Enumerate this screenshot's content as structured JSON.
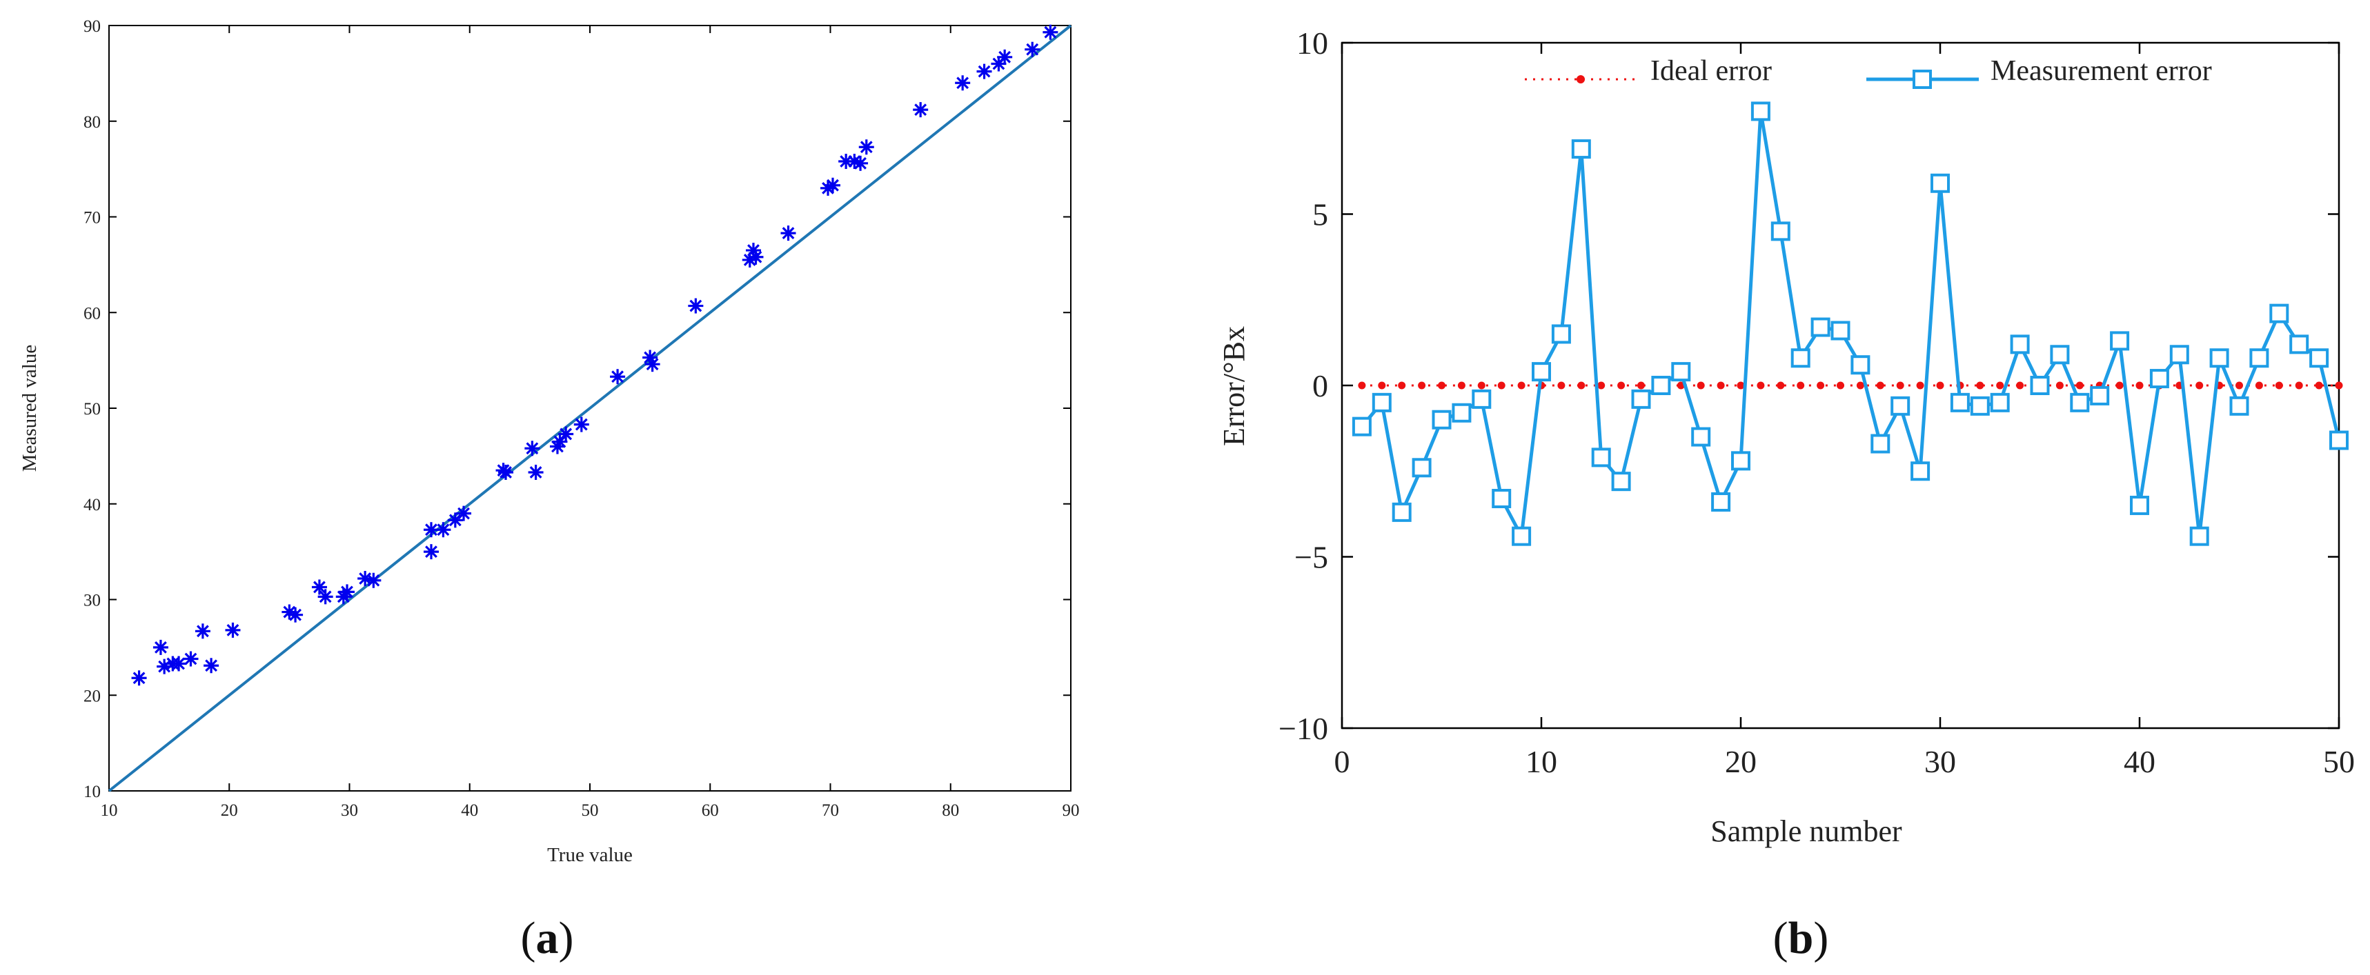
{
  "chart_data": [
    {
      "panel": "a",
      "type": "scatter",
      "xlabel": "True value",
      "ylabel": "Measured value",
      "xlim": [
        10,
        90
      ],
      "ylim": [
        10,
        90
      ],
      "xticks": [
        10,
        20,
        30,
        40,
        50,
        60,
        70,
        80,
        90
      ],
      "yticks": [
        10,
        20,
        30,
        40,
        50,
        60,
        70,
        80,
        90
      ],
      "grid": false,
      "colors": {
        "points": "#0000ee",
        "line": "#1f77b4"
      },
      "reference_line": {
        "x": [
          10,
          90
        ],
        "y": [
          10,
          90
        ]
      },
      "series": [
        {
          "marker": "asterisk",
          "points": [
            [
              12.5,
              21.8
            ],
            [
              14.3,
              25.0
            ],
            [
              14.6,
              23.0
            ],
            [
              15.3,
              23.3
            ],
            [
              15.8,
              23.3
            ],
            [
              16.8,
              23.8
            ],
            [
              17.8,
              26.7
            ],
            [
              18.5,
              23.1
            ],
            [
              20.3,
              26.8
            ],
            [
              25.0,
              28.7
            ],
            [
              25.5,
              28.4
            ],
            [
              27.5,
              31.3
            ],
            [
              28.0,
              30.3
            ],
            [
              29.5,
              30.3
            ],
            [
              29.8,
              30.8
            ],
            [
              31.3,
              32.2
            ],
            [
              32.0,
              32.0
            ],
            [
              36.8,
              37.3
            ],
            [
              36.8,
              35.0
            ],
            [
              37.8,
              37.3
            ],
            [
              38.8,
              38.3
            ],
            [
              39.5,
              39.0
            ],
            [
              42.8,
              43.5
            ],
            [
              43.0,
              43.3
            ],
            [
              45.2,
              45.8
            ],
            [
              45.5,
              43.3
            ],
            [
              47.3,
              46.0
            ],
            [
              47.5,
              46.5
            ],
            [
              48.0,
              47.3
            ],
            [
              49.3,
              48.3
            ],
            [
              52.3,
              53.3
            ],
            [
              55.0,
              55.3
            ],
            [
              55.2,
              54.6
            ],
            [
              58.8,
              60.7
            ],
            [
              63.3,
              65.5
            ],
            [
              63.6,
              66.5
            ],
            [
              63.8,
              65.8
            ],
            [
              66.5,
              68.3
            ],
            [
              69.8,
              73.0
            ],
            [
              70.2,
              73.3
            ],
            [
              71.3,
              75.8
            ],
            [
              72.0,
              75.8
            ],
            [
              72.5,
              75.6
            ],
            [
              73.0,
              77.3
            ],
            [
              77.5,
              81.2
            ],
            [
              81.0,
              84.0
            ],
            [
              82.8,
              85.2
            ],
            [
              84.0,
              86.0
            ],
            [
              84.5,
              86.7
            ],
            [
              86.8,
              87.5
            ],
            [
              88.3,
              89.3
            ]
          ]
        }
      ],
      "panel_label": {
        "open": "(",
        "letter": "a",
        "close": ")"
      }
    },
    {
      "panel": "b",
      "type": "line",
      "xlabel": "Sample number",
      "ylabel": "Error/°Bx",
      "xlim": [
        0,
        50
      ],
      "ylim": [
        -10,
        10
      ],
      "xticks": [
        0,
        10,
        20,
        30,
        40,
        50
      ],
      "yticks": [
        -10,
        -5,
        0,
        5,
        10
      ],
      "ytick_labels": [
        "−10",
        "−5",
        "0",
        "5",
        "10"
      ],
      "grid": false,
      "legend_position": "top",
      "series": [
        {
          "name": "Ideal error",
          "color": "#ee1111",
          "style": "dotted-with-dots",
          "x": [
            1,
            50
          ],
          "y": [
            0,
            0
          ]
        },
        {
          "name": "Measurement error",
          "color": "#1e9de6",
          "style": "solid-square-markers",
          "x": [
            1,
            2,
            3,
            4,
            5,
            6,
            7,
            8,
            9,
            10,
            11,
            12,
            13,
            14,
            15,
            16,
            17,
            18,
            19,
            20,
            21,
            22,
            23,
            24,
            25,
            26,
            27,
            28,
            29,
            30,
            31,
            32,
            33,
            34,
            35,
            36,
            37,
            38,
            39,
            40,
            41,
            42,
            43,
            44,
            45,
            46,
            47,
            48,
            49,
            50
          ],
          "y": [
            -1.2,
            -0.5,
            -3.7,
            -2.4,
            -1.0,
            -0.8,
            -0.4,
            -3.3,
            -4.4,
            0.4,
            1.5,
            6.9,
            -2.1,
            -2.8,
            -0.4,
            0.0,
            0.4,
            -1.5,
            -3.4,
            -2.2,
            8.0,
            4.5,
            0.8,
            1.7,
            1.6,
            0.6,
            -1.7,
            -0.6,
            -2.5,
            5.9,
            -0.5,
            -0.6,
            -0.5,
            1.2,
            0.0,
            0.9,
            -0.5,
            -0.3,
            1.3,
            -3.5,
            0.2,
            0.9,
            -4.4,
            0.8,
            -0.6,
            0.8,
            2.1,
            1.2,
            0.8,
            -1.6
          ]
        }
      ],
      "panel_label": {
        "open": "(",
        "letter": "b",
        "close": ")"
      }
    }
  ]
}
